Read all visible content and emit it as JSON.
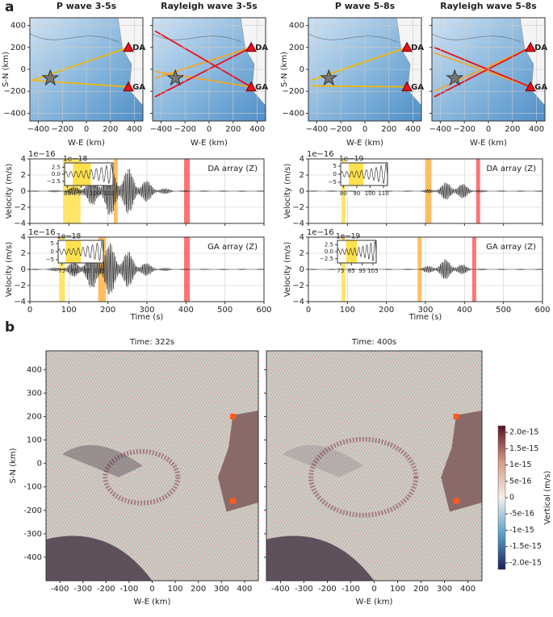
{
  "panel_labels": [
    "a",
    "b"
  ],
  "stations": [
    {
      "label": "DA",
      "x": 350,
      "y": 200
    },
    {
      "label": "GA",
      "x": 350,
      "y": -160
    }
  ],
  "maps": [
    {
      "title": "P wave 3-5s",
      "xlabel": "W-E (km)",
      "ylabel": "S-N (km)",
      "source": [
        -300,
        -80
      ],
      "rays": [
        {
          "from": [
            -450,
            -100
          ],
          "to": [
            350,
            200
          ],
          "color": "#f2b705"
        },
        {
          "from": [
            -450,
            -100
          ],
          "to": [
            350,
            -160
          ],
          "color": "#f2b705"
        }
      ]
    },
    {
      "title": "Rayleigh wave 3-5s",
      "xlabel": "W-E (km)",
      "source": [
        -280,
        -80
      ],
      "rays": [
        {
          "from": [
            -450,
            -80
          ],
          "to": [
            350,
            200
          ],
          "color": "#f5a623"
        },
        {
          "from": [
            -450,
            -20
          ],
          "to": [
            350,
            -160
          ],
          "color": "#f5a623"
        },
        {
          "from": [
            -450,
            350
          ],
          "to": [
            350,
            -160
          ],
          "color": "#e8101a"
        },
        {
          "from": [
            -450,
            -250
          ],
          "to": [
            350,
            200
          ],
          "color": "#e8101a"
        }
      ]
    },
    {
      "title": "P wave 5-8s",
      "xlabel": "W-E (km)",
      "ylabel": "S-N (km)",
      "source": [
        -300,
        -80
      ],
      "rays": [
        {
          "from": [
            -450,
            -100
          ],
          "to": [
            350,
            200
          ],
          "color": "#f2b705"
        },
        {
          "from": [
            -450,
            -150
          ],
          "to": [
            350,
            -160
          ],
          "color": "#f2b705"
        }
      ]
    },
    {
      "title": "Rayleigh wave 5-8s",
      "xlabel": "W-E (km)",
      "source": [
        -280,
        -80
      ],
      "rays": [
        {
          "from": [
            -450,
            150
          ],
          "to": [
            350,
            -160
          ],
          "color": "#f5a623"
        },
        {
          "from": [
            -450,
            -200
          ],
          "to": [
            350,
            200
          ],
          "color": "#f5a623"
        },
        {
          "from": [
            -450,
            200
          ],
          "to": [
            350,
            -160
          ],
          "color": "#e8101a"
        },
        {
          "from": [
            -450,
            -250
          ],
          "to": [
            350,
            200
          ],
          "color": "#e8101a"
        }
      ]
    }
  ],
  "map_axes": {
    "xlim": [
      -470,
      470
    ],
    "ylim": [
      -470,
      470
    ],
    "xticks": [
      {
        "value": -400,
        "label": "−400"
      },
      {
        "value": -200,
        "label": "−200"
      },
      0,
      200,
      400
    ],
    "yticks": [
      {
        "value": -400,
        "label": "−400"
      },
      {
        "value": -200,
        "label": "−200"
      },
      0,
      200,
      400
    ]
  },
  "waves": [
    {
      "title": "DA array (Z)",
      "ylabel": "Velocity (m/s)",
      "scale": "1e−16",
      "bands": [
        {
          "x0": 85,
          "x1": 130,
          "color": "#ffe14d"
        },
        {
          "x0": 215,
          "x1": 225,
          "color": "#ffb347"
        },
        {
          "x0": 395,
          "x1": 410,
          "color": "#ff5c5c"
        }
      ],
      "inset": {
        "scale": "1e−18",
        "xlim": [
          78,
          113
        ],
        "ylim": [
          -4,
          4
        ],
        "xticks": [
          80,
          90,
          100,
          110
        ],
        "yticks": [
          2.5,
          {
            "value": 0,
            "label": "0.0"
          },
          {
            "value": -2.5,
            "label": "−2.5"
          }
        ],
        "band": [
          84,
          97
        ]
      }
    },
    {
      "title": "GA array (Z)",
      "ylabel": "Velocity (m/s)",
      "xlabel": "Time (s)",
      "scale": "1e−16",
      "bands": [
        {
          "x0": 75,
          "x1": 90,
          "color": "#ffe14d"
        },
        {
          "x0": 175,
          "x1": 195,
          "color": "#ffb347"
        },
        {
          "x0": 395,
          "x1": 410,
          "color": "#ff5c5c"
        }
      ],
      "inset": {
        "scale": "1e−18",
        "xlim": [
          72,
          108
        ],
        "ylim": [
          -7,
          7
        ],
        "xticks": [
          75,
          85,
          95,
          105
        ],
        "yticks": [
          5,
          0,
          {
            "value": -5,
            "label": "−5"
          }
        ],
        "band": [
          78,
          90
        ]
      }
    },
    {
      "title": "DA array (Z)",
      "ylabel": "Velocity (m/s)",
      "scale": "1e−16",
      "bands": [
        {
          "x0": 85,
          "x1": 95,
          "color": "#ffe14d"
        },
        {
          "x0": 300,
          "x1": 315,
          "color": "#ffb347"
        },
        {
          "x0": 430,
          "x1": 440,
          "color": "#ff5c5c"
        }
      ],
      "inset": {
        "scale": "1e−19",
        "xlim": [
          78,
          113
        ],
        "ylim": [
          -7,
          7
        ],
        "xticks": [
          80,
          90,
          100,
          110
        ],
        "yticks": [
          5,
          0,
          {
            "value": -5,
            "label": "−5"
          }
        ],
        "band": [
          84,
          95
        ]
      }
    },
    {
      "title": "GA array (Z)",
      "ylabel": "Velocity (m/s)",
      "xlabel": "Time (s)",
      "scale": "1e−16",
      "bands": [
        {
          "x0": 85,
          "x1": 95,
          "color": "#ffe14d"
        },
        {
          "x0": 280,
          "x1": 290,
          "color": "#ffb347"
        },
        {
          "x0": 420,
          "x1": 430,
          "color": "#ff5c5c"
        }
      ],
      "inset": {
        "scale": "1e−19",
        "xlim": [
          72,
          108
        ],
        "ylim": [
          -4,
          4
        ],
        "xticks": [
          75,
          85,
          95,
          105
        ],
        "yticks": [
          2.5,
          {
            "value": 0,
            "label": "0.0"
          },
          {
            "value": -2.5,
            "label": "−2.5"
          }
        ],
        "band": [
          80,
          90
        ]
      }
    }
  ],
  "wave_axes": {
    "xlim": [
      0,
      600
    ],
    "ylim": [
      -4,
      4
    ],
    "xticks": [
      0,
      100,
      200,
      300,
      400,
      500,
      600
    ],
    "yticks": [
      {
        "value": -4,
        "label": "−4"
      },
      {
        "value": -2,
        "label": "−2"
      },
      0,
      2,
      4
    ]
  },
  "snapshots": [
    {
      "title": "Time: 322s",
      "xlabel": "W-E (km)",
      "ylabel": "S-N (km)"
    },
    {
      "title": "Time: 400s",
      "xlabel": "W-E (km)"
    }
  ],
  "snap_axes": {
    "xlim": [
      -460,
      460
    ],
    "ylim": [
      -500,
      480
    ],
    "xticks": [
      -400,
      -300,
      -200,
      -100,
      0,
      100,
      200,
      300,
      400
    ],
    "yticks": [
      -400,
      -300,
      -200,
      -100,
      0,
      100,
      200,
      300,
      400
    ]
  },
  "colorbar": {
    "label": "Vertical (m/s)",
    "clim": [
      -2.2e-15,
      2.2e-15
    ],
    "ticks": [
      {
        "value": 2e-15,
        "label": "2.0e-15"
      },
      1.5e-15,
      1e-15,
      5e-16,
      0,
      -5e-16,
      -1e-15,
      -1.5e-15,
      {
        "value": -2e-15,
        "label": "-2.0e-15"
      }
    ]
  }
}
